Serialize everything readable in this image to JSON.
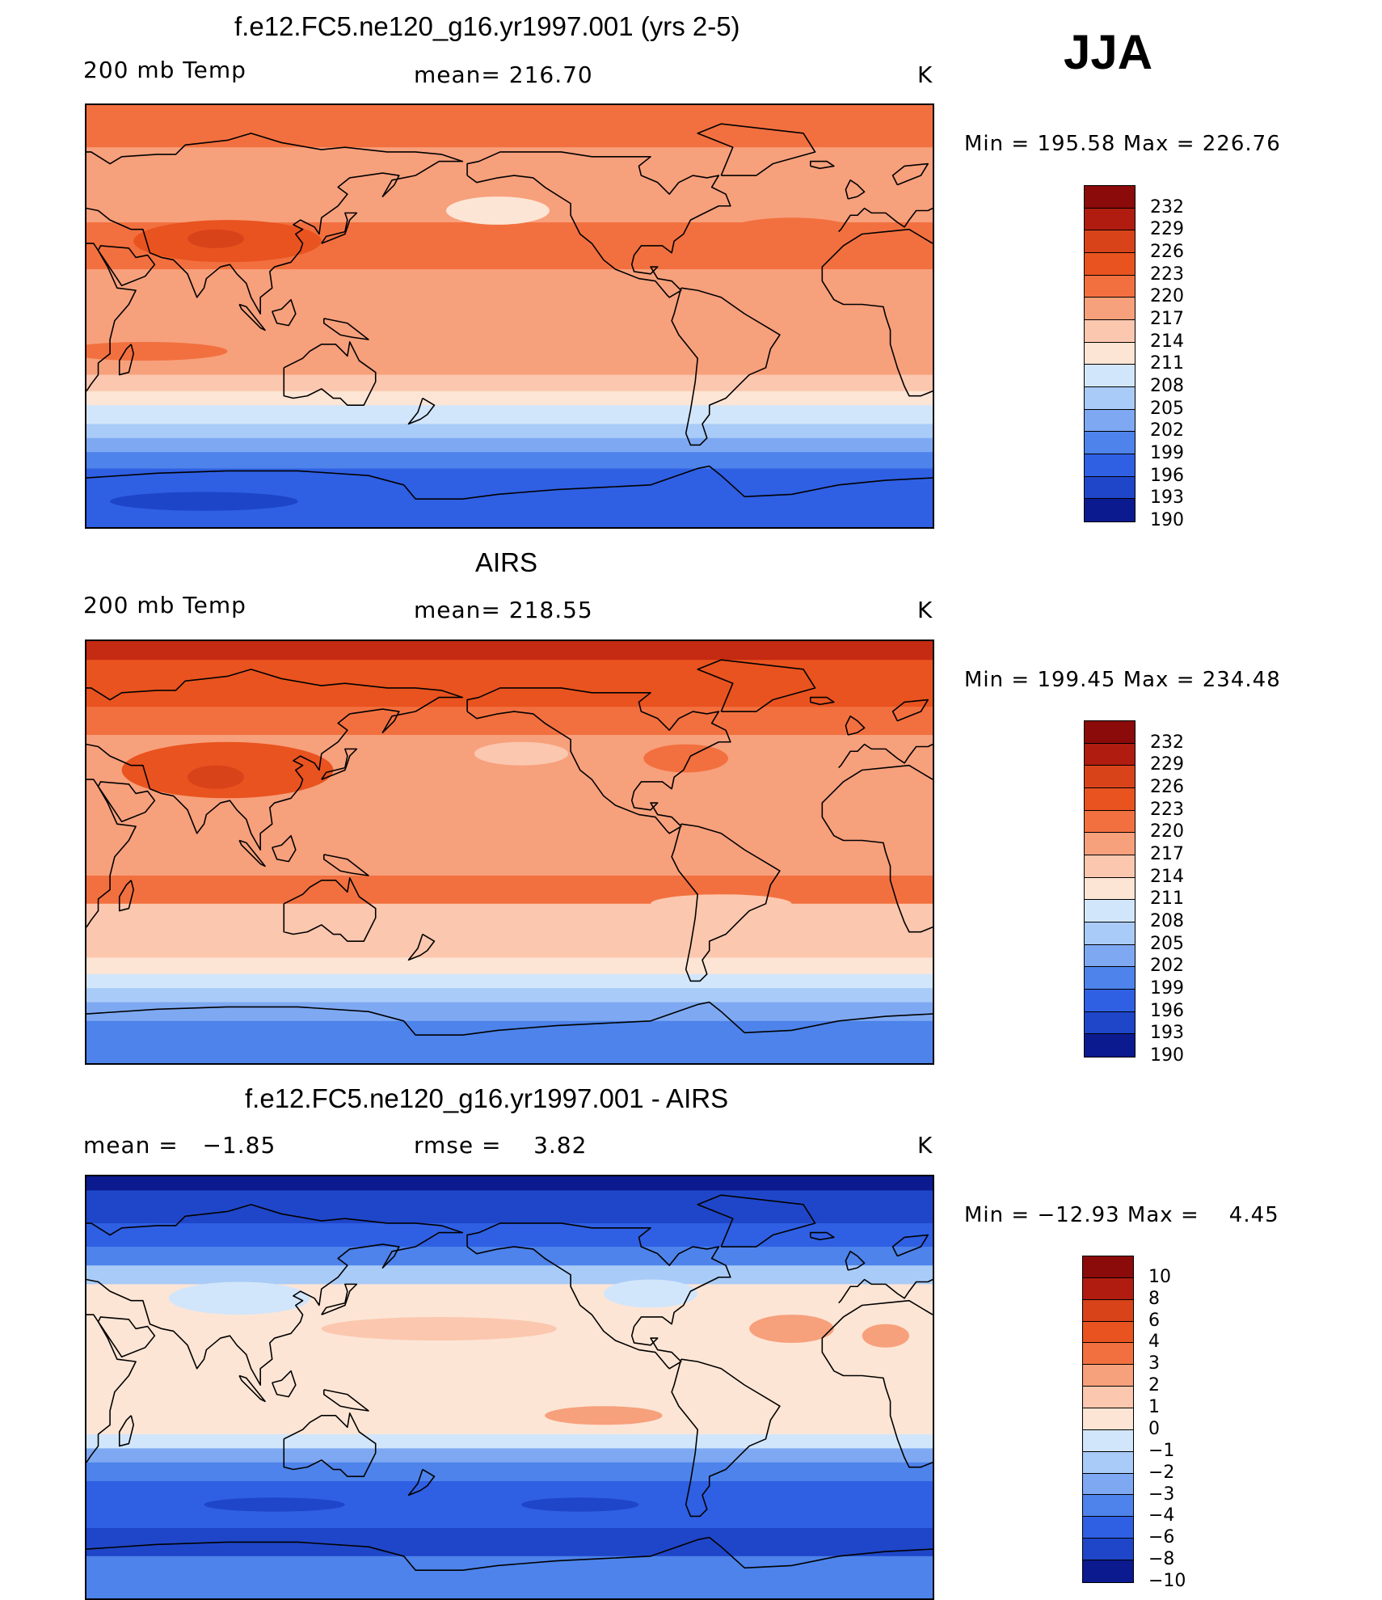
{
  "season": "JJA",
  "panels": [
    {
      "title": "f.e12.FC5.ne120_g16.yr1997.001 (yrs 2-5)",
      "left_label": "200 mb Temp",
      "center_label": "mean= 216.70",
      "units": "K",
      "minmax": "Min = 195.58 Max = 226.76",
      "colorbar_labels": [
        "232",
        "229",
        "226",
        "223",
        "220",
        "217",
        "214",
        "211",
        "208",
        "205",
        "202",
        "199",
        "196",
        "193",
        "190"
      ],
      "bands": [
        {
          "lat_top": 90,
          "lat_bottom": 72,
          "color": "#f2703f"
        },
        {
          "lat_top": 72,
          "lat_bottom": 40,
          "color": "#f7a07c"
        },
        {
          "lat_top": 40,
          "lat_bottom": 20,
          "color": "#f2703f"
        },
        {
          "lat_top": 20,
          "lat_bottom": -25,
          "color": "#f7a07c"
        },
        {
          "lat_top": -25,
          "lat_bottom": -32,
          "color": "#fbc7ae"
        },
        {
          "lat_top": -32,
          "lat_bottom": -38,
          "color": "#fde5d5"
        },
        {
          "lat_top": -38,
          "lat_bottom": -46,
          "color": "#d2e6fb"
        },
        {
          "lat_top": -46,
          "lat_bottom": -52,
          "color": "#a9cbf7"
        },
        {
          "lat_top": -52,
          "lat_bottom": -58,
          "color": "#7ea9f2"
        },
        {
          "lat_top": -58,
          "lat_bottom": -65,
          "color": "#4d83ea"
        },
        {
          "lat_top": -65,
          "lat_bottom": -90,
          "color": "#2f5fe3"
        }
      ],
      "blobs": [
        {
          "lon": 90,
          "lat": 32,
          "rlon": 40,
          "rlat": 9,
          "color": "#e9531f"
        },
        {
          "lon": 85,
          "lat": 33,
          "rlon": 12,
          "rlat": 4,
          "color": "#d8431a"
        },
        {
          "lon": 55,
          "lat": -15,
          "rlon": 35,
          "rlat": 4,
          "color": "#f2703f"
        },
        {
          "lon": 205,
          "lat": 45,
          "rlon": 22,
          "rlat": 6,
          "color": "#fde5d5"
        },
        {
          "lon": 330,
          "lat": 35,
          "rlon": 30,
          "rlat": 7,
          "color": "#f2703f"
        },
        {
          "lon": 80,
          "lat": -79,
          "rlon": 40,
          "rlat": 4,
          "color": "#1d45c8"
        }
      ]
    },
    {
      "title": "AIRS",
      "left_label": "200 mb Temp",
      "center_label": "mean= 218.55",
      "units": "K",
      "minmax": "Min = 199.45 Max = 234.48",
      "colorbar_labels": [
        "232",
        "229",
        "226",
        "223",
        "220",
        "217",
        "214",
        "211",
        "208",
        "205",
        "202",
        "199",
        "196",
        "193",
        "190"
      ],
      "bands": [
        {
          "lat_top": 90,
          "lat_bottom": 82,
          "color": "#c52a12"
        },
        {
          "lat_top": 82,
          "lat_bottom": 62,
          "color": "#e9531f"
        },
        {
          "lat_top": 62,
          "lat_bottom": 50,
          "color": "#f2703f"
        },
        {
          "lat_top": 50,
          "lat_bottom": 20,
          "color": "#f7a07c"
        },
        {
          "lat_top": 20,
          "lat_bottom": -10,
          "color": "#f7a07c"
        },
        {
          "lat_top": -10,
          "lat_bottom": -22,
          "color": "#f2703f"
        },
        {
          "lat_top": -22,
          "lat_bottom": -45,
          "color": "#fbc7ae"
        },
        {
          "lat_top": -45,
          "lat_bottom": -52,
          "color": "#fde5d5"
        },
        {
          "lat_top": -52,
          "lat_bottom": -58,
          "color": "#d2e6fb"
        },
        {
          "lat_top": -58,
          "lat_bottom": -64,
          "color": "#a9cbf7"
        },
        {
          "lat_top": -64,
          "lat_bottom": -72,
          "color": "#7ea9f2"
        },
        {
          "lat_top": -72,
          "lat_bottom": -90,
          "color": "#4d83ea"
        }
      ],
      "blobs": [
        {
          "lon": 90,
          "lat": 35,
          "rlon": 45,
          "rlat": 12,
          "color": "#e9531f"
        },
        {
          "lon": 85,
          "lat": 32,
          "rlon": 12,
          "rlat": 5,
          "color": "#d8431a"
        },
        {
          "lon": 215,
          "lat": 42,
          "rlon": 20,
          "rlat": 5,
          "color": "#fbc7ae"
        },
        {
          "lon": 285,
          "lat": 40,
          "rlon": 18,
          "rlat": 6,
          "color": "#f2703f"
        },
        {
          "lon": 300,
          "lat": -22,
          "rlon": 30,
          "rlat": 4,
          "color": "#fbc7ae"
        }
      ]
    },
    {
      "title": "f.e12.FC5.ne120_g16.yr1997.001 - AIRS",
      "left_label": "mean =   −1.85",
      "center_label": "rmse =    3.82",
      "units": "K",
      "minmax": "Min = −12.93 Max =    4.45",
      "colorbar_labels": [
        "10",
        "8",
        "6",
        "4",
        "3",
        "2",
        "1",
        "0",
        "−1",
        "−2",
        "−3",
        "−4",
        "−6",
        "−8",
        "−10"
      ],
      "bands": [
        {
          "lat_top": 90,
          "lat_bottom": 84,
          "color": "#0b1a8e"
        },
        {
          "lat_top": 84,
          "lat_bottom": 70,
          "color": "#1f46c9"
        },
        {
          "lat_top": 70,
          "lat_bottom": 60,
          "color": "#2f5fe3"
        },
        {
          "lat_top": 60,
          "lat_bottom": 52,
          "color": "#4d83ea"
        },
        {
          "lat_top": 52,
          "lat_bottom": 44,
          "color": "#a9cbf7"
        },
        {
          "lat_top": 44,
          "lat_bottom": -20,
          "color": "#fde5d5"
        },
        {
          "lat_top": -20,
          "lat_bottom": -26,
          "color": "#d2e6fb"
        },
        {
          "lat_top": -26,
          "lat_bottom": -32,
          "color": "#7ea9f2"
        },
        {
          "lat_top": -32,
          "lat_bottom": -40,
          "color": "#4d83ea"
        },
        {
          "lat_top": -40,
          "lat_bottom": -60,
          "color": "#2f5fe3"
        },
        {
          "lat_top": -60,
          "lat_bottom": -72,
          "color": "#1f46c9"
        },
        {
          "lat_top": -72,
          "lat_bottom": -90,
          "color": "#4d83ea"
        }
      ],
      "blobs": [
        {
          "lon": 95,
          "lat": 38,
          "rlon": 30,
          "rlat": 7,
          "color": "#d2e6fb"
        },
        {
          "lon": 270,
          "lat": 40,
          "rlon": 20,
          "rlat": 6,
          "color": "#d2e6fb"
        },
        {
          "lon": 180,
          "lat": 25,
          "rlon": 50,
          "rlat": 5,
          "color": "#fbc7ae"
        },
        {
          "lon": 330,
          "lat": 25,
          "rlon": 18,
          "rlat": 6,
          "color": "#f7a07c"
        },
        {
          "lon": 10,
          "lat": 22,
          "rlon": 10,
          "rlat": 5,
          "color": "#f7a07c"
        },
        {
          "lon": 250,
          "lat": -12,
          "rlon": 25,
          "rlat": 4,
          "color": "#f7a07c"
        },
        {
          "lon": 110,
          "lat": -50,
          "rlon": 30,
          "rlat": 3,
          "color": "#1f46c9"
        },
        {
          "lon": 240,
          "lat": -50,
          "rlon": 25,
          "rlat": 3,
          "color": "#1f46c9"
        }
      ]
    }
  ],
  "colorbar_colors": [
    "#8b0a0a",
    "#b01c10",
    "#d8431a",
    "#e9531f",
    "#f2703f",
    "#f7a07c",
    "#fbc7ae",
    "#fde5d5",
    "#d2e6fb",
    "#a9cbf7",
    "#7ea9f2",
    "#4d83ea",
    "#2f5fe3",
    "#1f46c9",
    "#0b1a8e"
  ]
}
